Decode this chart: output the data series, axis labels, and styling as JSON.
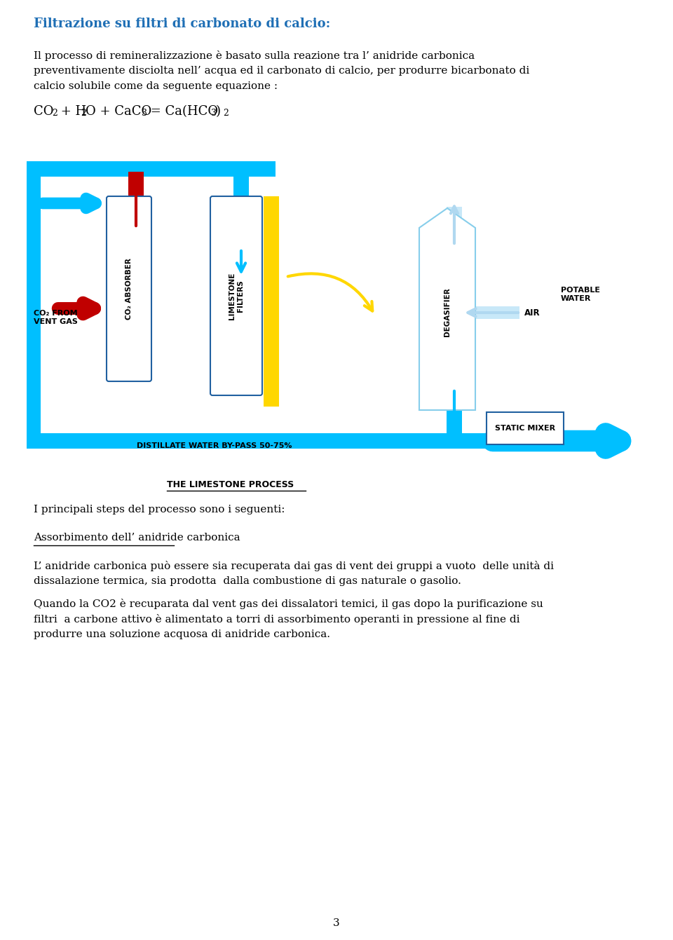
{
  "title": "Filtrazione su filtri di carbonato di calcio:",
  "title_color": "#1F6FB5",
  "title_fontsize": 13,
  "section_title": "I principali steps del processo sono i seguenti:",
  "subsection_title": "Assorbimento dell’ anidride carbonica",
  "body1_l1": "Il processo di remineralizzazione è basato sulla reazione tra l’ anidride carbonica",
  "body1_l2": "preventivamente disciolta nell’ acqua ed il carbonato di calcio, per produrre bicarbonato di",
  "body1_l3": "calcio solubile come da seguente equazione :",
  "body_text2_l1": "L’ anidride carbonica può essere sia recuperata dai gas di vent dei gruppi a vuoto  delle unità di",
  "body_text2_l2": "dissalazione termica, sia prodotta  dalla combustione di gas naturale o gasolio.",
  "body_text3_l1": "Quando la CO2 è recuparata dal vent gas dei dissalatori temici, il gas dopo la purificazione su",
  "body_text3_l2": "filtri  a carbone attivo è alimentato a torri di assorbimento operanti in pressione al fine di",
  "body_text3_l3": "produrre una soluzione acquosa di anidride carbonica.",
  "page_number": "3",
  "cyan": "#00BFFF",
  "red": "#C00000",
  "yellow": "#FFD700",
  "light_blue": "#B0D8F0",
  "light_blue2": "#C8E8F8",
  "dark_blue_outline": "#2060A0",
  "degasifier_outline": "#87CEEB",
  "bg": "#FFFFFF",
  "distillate_label": "DISTILLATE WATER BY-PASS 50-75%",
  "limestone_process_label": "THE LIMESTONE PROCESS",
  "potable_label": "POTABLE\nWATER",
  "air_label": "AIR",
  "co2_from_label": "CO₂ FROM\nVENT GAS",
  "static_mixer_label": "STATIC MIXER",
  "co2_absorber_label": "CO₂ ABSORBER",
  "limestone_filters_label": "LIMESTONE\nFILTERS",
  "degasifier_label": "DEGASIFIER"
}
